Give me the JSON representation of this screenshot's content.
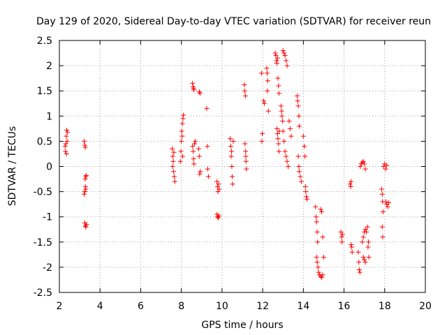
{
  "chart_data": {
    "type": "scatter",
    "title": "Day 129 of 2020, Sidereal Day-to-day VTEC variation (SDTVAR) for receiver reun",
    "xlabel": "GPS time / hours",
    "ylabel": "SDTVAR / TECUs",
    "xlim": [
      2,
      20
    ],
    "ylim": [
      -2.5,
      2.5
    ],
    "x_ticks": [
      "2",
      "4",
      "6",
      "8",
      "10",
      "12",
      "14",
      "16",
      "18",
      "20"
    ],
    "y_ticks": [
      "2.5",
      "2",
      "1.5",
      "1",
      "0.5",
      "0",
      "-0.5",
      "-1",
      "-1.5",
      "-2",
      "-2.5"
    ],
    "grid": true,
    "marker": "+",
    "marker_color": "#ff0000",
    "series": [
      {
        "name": "SDTVAR",
        "points": [
          [
            2.3,
            0.3
          ],
          [
            2.32,
            0.45
          ],
          [
            2.34,
            0.6
          ],
          [
            2.36,
            0.72
          ],
          [
            2.38,
            0.5
          ],
          [
            2.4,
            0.68
          ],
          [
            2.28,
            0.4
          ],
          [
            2.35,
            0.25
          ],
          [
            3.22,
            0.5
          ],
          [
            3.25,
            0.42
          ],
          [
            3.28,
            0.38
          ],
          [
            3.3,
            -0.2
          ],
          [
            3.27,
            -0.25
          ],
          [
            3.32,
            -0.18
          ],
          [
            3.28,
            -0.4
          ],
          [
            3.25,
            -0.5
          ],
          [
            3.22,
            -0.55
          ],
          [
            3.3,
            -0.45
          ],
          [
            3.25,
            -1.12
          ],
          [
            3.28,
            -1.18
          ],
          [
            3.3,
            -1.2
          ],
          [
            3.33,
            -1.15
          ],
          [
            7.55,
            0.35
          ],
          [
            7.58,
            0.2
          ],
          [
            7.6,
            0.1
          ],
          [
            7.62,
            -0.1
          ],
          [
            7.65,
            -0.2
          ],
          [
            7.68,
            -0.3
          ],
          [
            7.57,
            0.0
          ],
          [
            7.63,
            0.28
          ],
          [
            7.95,
            0.1
          ],
          [
            7.98,
            0.3
          ],
          [
            8.0,
            0.5
          ],
          [
            8.02,
            0.7
          ],
          [
            8.05,
            0.85
          ],
          [
            8.08,
            0.95
          ],
          [
            8.1,
            1.02
          ],
          [
            8.04,
            0.6
          ],
          [
            8.06,
            0.2
          ],
          [
            8.55,
            1.65
          ],
          [
            8.58,
            1.58
          ],
          [
            8.6,
            1.55
          ],
          [
            8.62,
            1.52
          ],
          [
            8.55,
            0.4
          ],
          [
            8.58,
            0.3
          ],
          [
            8.6,
            0.15
          ],
          [
            8.62,
            0.05
          ],
          [
            8.65,
            0.45
          ],
          [
            8.68,
            0.5
          ],
          [
            8.88,
            1.48
          ],
          [
            8.92,
            1.45
          ],
          [
            8.85,
            0.35
          ],
          [
            8.88,
            0.2
          ],
          [
            8.9,
            -0.15
          ],
          [
            8.93,
            -0.1
          ],
          [
            9.25,
            1.15
          ],
          [
            9.28,
            0.4
          ],
          [
            9.3,
            -0.05
          ],
          [
            9.33,
            -0.2
          ],
          [
            9.75,
            -0.3
          ],
          [
            9.78,
            -0.4
          ],
          [
            9.8,
            -0.5
          ],
          [
            9.83,
            -0.35
          ],
          [
            9.86,
            -0.45
          ],
          [
            9.75,
            -0.95
          ],
          [
            9.78,
            -1.0
          ],
          [
            9.82,
            -1.02
          ],
          [
            9.85,
            -0.98
          ],
          [
            10.4,
            0.55
          ],
          [
            10.43,
            0.4
          ],
          [
            10.45,
            0.2
          ],
          [
            10.48,
            0.0
          ],
          [
            10.5,
            -0.2
          ],
          [
            10.52,
            -0.35
          ],
          [
            10.55,
            0.5
          ],
          [
            10.47,
            0.3
          ],
          [
            11.1,
            1.62
          ],
          [
            11.12,
            1.5
          ],
          [
            11.15,
            1.4
          ],
          [
            11.13,
            0.45
          ],
          [
            11.16,
            0.3
          ],
          [
            11.18,
            0.1
          ],
          [
            11.2,
            -0.05
          ],
          [
            11.17,
            0.2
          ],
          [
            11.95,
            1.85
          ],
          [
            11.98,
            0.65
          ],
          [
            11.96,
            0.5
          ],
          [
            12.05,
            1.3
          ],
          [
            12.08,
            1.25
          ],
          [
            12.2,
            1.95
          ],
          [
            12.22,
            1.85
          ],
          [
            12.25,
            1.7
          ],
          [
            12.23,
            1.5
          ],
          [
            12.28,
            1.1
          ],
          [
            12.62,
            2.25
          ],
          [
            12.65,
            2.2
          ],
          [
            12.68,
            2.1
          ],
          [
            12.7,
            2.05
          ],
          [
            12.73,
            2.15
          ],
          [
            12.75,
            1.75
          ],
          [
            12.78,
            1.6
          ],
          [
            12.8,
            1.45
          ],
          [
            12.7,
            0.75
          ],
          [
            12.73,
            0.65
          ],
          [
            12.75,
            0.55
          ],
          [
            12.78,
            0.45
          ],
          [
            12.8,
            0.3
          ],
          [
            12.82,
            0.7
          ],
          [
            12.9,
            1.2
          ],
          [
            12.93,
            1.1
          ],
          [
            12.95,
            1.0
          ],
          [
            12.98,
            0.9
          ],
          [
            13.0,
            2.3
          ],
          [
            13.05,
            2.25
          ],
          [
            13.1,
            2.2
          ],
          [
            13.15,
            2.1
          ],
          [
            13.2,
            2.0
          ],
          [
            13.0,
            0.7
          ],
          [
            13.05,
            0.5
          ],
          [
            13.1,
            0.3
          ],
          [
            13.15,
            0.2
          ],
          [
            13.2,
            0.1
          ],
          [
            13.25,
            0.0
          ],
          [
            13.3,
            0.9
          ],
          [
            13.35,
            0.75
          ],
          [
            13.4,
            0.6
          ],
          [
            13.7,
            1.4
          ],
          [
            13.72,
            1.3
          ],
          [
            13.75,
            1.2
          ],
          [
            13.78,
            1.0
          ],
          [
            13.8,
            0.8
          ],
          [
            13.75,
            0.2
          ],
          [
            13.78,
            0.0
          ],
          [
            13.8,
            -0.1
          ],
          [
            13.85,
            -0.2
          ],
          [
            13.9,
            -0.3
          ],
          [
            14.0,
            0.6
          ],
          [
            14.05,
            0.4
          ],
          [
            14.08,
            0.2
          ],
          [
            14.1,
            -0.4
          ],
          [
            14.12,
            -0.5
          ],
          [
            14.15,
            -0.6
          ],
          [
            14.18,
            -0.65
          ],
          [
            14.6,
            -0.8
          ],
          [
            14.63,
            -1.0
          ],
          [
            14.65,
            -1.1
          ],
          [
            14.68,
            -1.3
          ],
          [
            14.7,
            -1.5
          ],
          [
            14.65,
            -1.8
          ],
          [
            14.68,
            -1.9
          ],
          [
            14.72,
            -2.0
          ],
          [
            14.75,
            -2.1
          ],
          [
            14.8,
            -2.15
          ],
          [
            14.85,
            -2.18
          ],
          [
            14.9,
            -2.2
          ],
          [
            14.95,
            -2.15
          ],
          [
            14.85,
            -0.85
          ],
          [
            14.9,
            -0.9
          ],
          [
            14.95,
            -1.4
          ],
          [
            15.0,
            -1.8
          ],
          [
            15.85,
            -1.3
          ],
          [
            15.88,
            -1.4
          ],
          [
            15.9,
            -1.5
          ],
          [
            15.92,
            -1.35
          ],
          [
            16.3,
            -0.35
          ],
          [
            16.33,
            -0.4
          ],
          [
            16.35,
            -0.3
          ],
          [
            16.35,
            -1.55
          ],
          [
            16.38,
            -1.6
          ],
          [
            16.4,
            -1.7
          ],
          [
            16.7,
            -1.7
          ],
          [
            16.73,
            -1.9
          ],
          [
            16.75,
            -2.05
          ],
          [
            16.78,
            -2.1
          ],
          [
            16.8,
            0.0
          ],
          [
            16.85,
            0.05
          ],
          [
            16.9,
            0.08
          ],
          [
            16.95,
            0.1
          ],
          [
            17.0,
            0.05
          ],
          [
            17.05,
            -0.05
          ],
          [
            16.9,
            -1.5
          ],
          [
            16.95,
            -1.4
          ],
          [
            17.0,
            -1.3
          ],
          [
            17.05,
            -1.25
          ],
          [
            17.1,
            -1.3
          ],
          [
            16.95,
            -1.8
          ],
          [
            17.0,
            -1.85
          ],
          [
            17.05,
            -1.9
          ],
          [
            17.2,
            -1.5
          ],
          [
            17.15,
            -1.2
          ],
          [
            17.18,
            -1.6
          ],
          [
            17.22,
            -1.8
          ],
          [
            17.85,
            -0.45
          ],
          [
            17.88,
            -0.55
          ],
          [
            17.9,
            -0.7
          ],
          [
            17.92,
            -0.9
          ],
          [
            17.88,
            -1.2
          ],
          [
            17.9,
            -1.4
          ],
          [
            17.95,
            0.0
          ],
          [
            18.0,
            0.05
          ],
          [
            18.05,
            -0.05
          ],
          [
            18.1,
            0.02
          ],
          [
            18.05,
            -0.7
          ],
          [
            18.1,
            -0.75
          ],
          [
            18.15,
            -0.8
          ],
          [
            18.2,
            -0.72
          ]
        ]
      }
    ]
  }
}
